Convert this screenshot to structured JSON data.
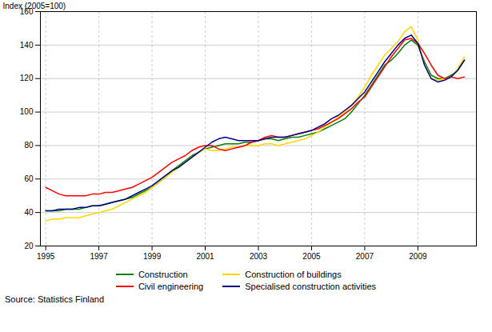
{
  "chart_data": {
    "type": "line",
    "ylabel": "Index (2005=100)",
    "caption": "Source: Statistics Finland",
    "xlim": [
      1994.8,
      2011.2
    ],
    "ylim": [
      20,
      160
    ],
    "xticks": [
      1995,
      1997,
      1999,
      2001,
      2003,
      2005,
      2007,
      2009
    ],
    "yticks": [
      20,
      40,
      60,
      80,
      100,
      120,
      140,
      160
    ],
    "grid": true,
    "legend": "bottom",
    "x": [
      1995.0,
      1995.25,
      1995.5,
      1995.75,
      1996.0,
      1996.25,
      1996.5,
      1996.75,
      1997.0,
      1997.25,
      1997.5,
      1997.75,
      1998.0,
      1998.25,
      1998.5,
      1998.75,
      1999.0,
      1999.25,
      1999.5,
      1999.75,
      2000.0,
      2000.25,
      2000.5,
      2000.75,
      2001.0,
      2001.25,
      2001.5,
      2001.75,
      2002.0,
      2002.25,
      2002.5,
      2002.75,
      2003.0,
      2003.25,
      2003.5,
      2003.75,
      2004.0,
      2004.25,
      2004.5,
      2004.75,
      2005.0,
      2005.25,
      2005.5,
      2005.75,
      2006.0,
      2006.25,
      2006.5,
      2006.75,
      2007.0,
      2007.25,
      2007.5,
      2007.75,
      2008.0,
      2008.25,
      2008.5,
      2008.75,
      2009.0,
      2009.25,
      2009.5,
      2009.75,
      2010.0,
      2010.25,
      2010.5,
      2010.75
    ],
    "series": [
      {
        "name": "Construction",
        "color": "#008000",
        "values": [
          41,
          41,
          41,
          42,
          42,
          42,
          43,
          44,
          44,
          45,
          46,
          47,
          48,
          49,
          51,
          53,
          55,
          58,
          61,
          65,
          68,
          71,
          74,
          76,
          78,
          79,
          80,
          81,
          81,
          81,
          82,
          82,
          83,
          84,
          84,
          83,
          84,
          85,
          85,
          86,
          87,
          88,
          90,
          92,
          94,
          96,
          100,
          105,
          110,
          116,
          122,
          128,
          131,
          135,
          140,
          143,
          140,
          130,
          122,
          120,
          120,
          122,
          125,
          131
        ]
      },
      {
        "name": "Construction of buildings",
        "color": "#FFD700",
        "values": [
          35,
          36,
          36,
          37,
          37,
          37,
          38,
          39,
          40,
          41,
          42,
          44,
          46,
          48,
          50,
          52,
          55,
          58,
          61,
          64,
          67,
          70,
          73,
          76,
          78,
          77,
          77,
          78,
          79,
          79,
          80,
          80,
          80,
          81,
          81,
          80,
          81,
          82,
          83,
          84,
          86,
          88,
          91,
          94,
          97,
          100,
          104,
          109,
          115,
          122,
          128,
          134,
          138,
          142,
          148,
          151,
          143,
          128,
          120,
          119,
          120,
          121,
          126,
          133
        ]
      },
      {
        "name": "Civil engineering",
        "color": "#FF0000",
        "values": [
          55,
          53,
          51,
          50,
          50,
          50,
          50,
          51,
          51,
          52,
          52,
          53,
          54,
          55,
          57,
          59,
          61,
          64,
          67,
          70,
          72,
          74,
          77,
          79,
          80,
          80,
          78,
          77,
          78,
          79,
          80,
          82,
          83,
          85,
          86,
          85,
          85,
          86,
          87,
          88,
          89,
          90,
          92,
          94,
          96,
          99,
          102,
          106,
          109,
          115,
          121,
          127,
          133,
          138,
          143,
          144,
          141,
          135,
          128,
          122,
          120,
          121,
          120,
          121
        ]
      },
      {
        "name": "Specialised construction activities",
        "color": "#000080",
        "values": [
          41,
          41,
          42,
          42,
          42,
          43,
          43,
          44,
          44,
          45,
          46,
          47,
          48,
          50,
          52,
          54,
          56,
          59,
          62,
          65,
          67,
          70,
          73,
          76,
          79,
          82,
          84,
          85,
          84,
          83,
          83,
          83,
          83,
          84,
          85,
          85,
          85,
          86,
          87,
          88,
          89,
          91,
          93,
          96,
          98,
          101,
          104,
          108,
          112,
          118,
          124,
          130,
          135,
          140,
          144,
          146,
          141,
          128,
          120,
          118,
          119,
          121,
          125,
          131
        ]
      }
    ]
  }
}
